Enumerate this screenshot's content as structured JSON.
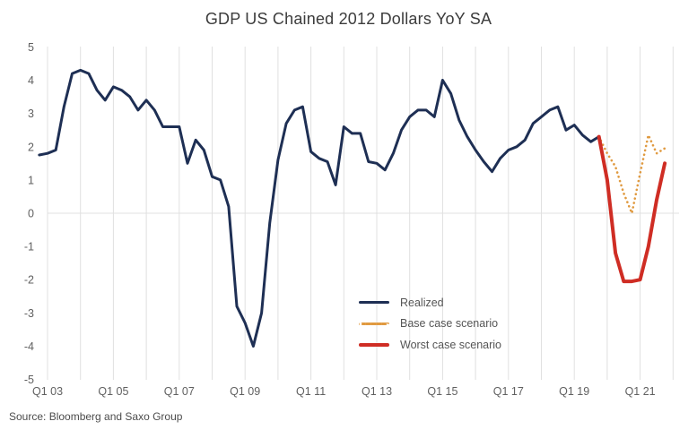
{
  "title": "GDP US Chained 2012 Dollars YoY SA",
  "source_text": "Source: Bloomberg and Saxo Group",
  "colors": {
    "realized": "#1e2f54",
    "base_case": "#e09a40",
    "worst_case": "#cf2d24",
    "grid": "#e0e0e0",
    "tick_text": "#606060",
    "title_text": "#3c3c3c"
  },
  "legend": {
    "position": "inside-bottom-center-right",
    "items": [
      {
        "label": "Realized",
        "style": "solid",
        "color_key": "realized"
      },
      {
        "label": "Base case scenario",
        "style": "dotted",
        "color_key": "base_case"
      },
      {
        "label": "Worst case scenario",
        "style": "solid-thick",
        "color_key": "worst_case"
      }
    ]
  },
  "chart_data": {
    "type": "line",
    "title": "GDP US Chained 2012 Dollars YoY SA",
    "xlabel": "",
    "ylabel": "",
    "ylim": [
      -5,
      5
    ],
    "y_ticks": [
      5,
      4,
      3,
      2,
      1,
      0,
      -1,
      -2,
      -3,
      -4,
      -5
    ],
    "x_tick_labels": [
      "Q1 03",
      "Q1 05",
      "Q1 07",
      "Q1 09",
      "Q1 11",
      "Q1 13",
      "Q1 15",
      "Q1 17",
      "Q1 19",
      "Q1 21"
    ],
    "grid": "vertical yearly gridlines plus horizontal zero line",
    "x_unit": "quarter",
    "series": [
      {
        "name": "Realized",
        "style": "solid",
        "width": 3,
        "color_key": "realized",
        "start": "Q4 2002",
        "x_index_start": -1,
        "values": [
          1.75,
          1.8,
          1.9,
          3.2,
          4.2,
          4.3,
          4.2,
          3.7,
          3.4,
          3.8,
          3.7,
          3.5,
          3.1,
          3.4,
          3.1,
          2.6,
          2.6,
          2.6,
          1.5,
          2.2,
          1.9,
          1.1,
          1.0,
          0.2,
          -2.8,
          -3.3,
          -4.0,
          -3.0,
          -0.3,
          1.6,
          2.7,
          3.1,
          3.2,
          1.85,
          1.65,
          1.55,
          0.85,
          2.6,
          2.4,
          2.4,
          1.55,
          1.5,
          1.3,
          1.8,
          2.5,
          2.9,
          3.1,
          3.1,
          2.9,
          4.0,
          3.6,
          2.8,
          2.3,
          1.9,
          1.55,
          1.25,
          1.65,
          1.9,
          2.0,
          2.2,
          2.7,
          2.9,
          3.1,
          3.2,
          2.5,
          2.65,
          2.35,
          2.15,
          2.3
        ]
      },
      {
        "name": "Base case scenario",
        "style": "dotted",
        "width": 2.6,
        "color_key": "base_case",
        "start": "Q4 2019",
        "x_index_start": 67,
        "values": [
          2.3,
          1.8,
          1.4,
          0.6,
          0.0,
          1.2,
          2.35,
          1.8,
          1.95
        ]
      },
      {
        "name": "Worst case scenario",
        "style": "solid",
        "width": 4,
        "color_key": "worst_case",
        "start": "Q4 2019",
        "x_index_start": 67,
        "values": [
          2.3,
          1.0,
          -1.2,
          -2.05,
          -2.05,
          -2.0,
          -1.0,
          0.4,
          1.5
        ]
      }
    ]
  }
}
